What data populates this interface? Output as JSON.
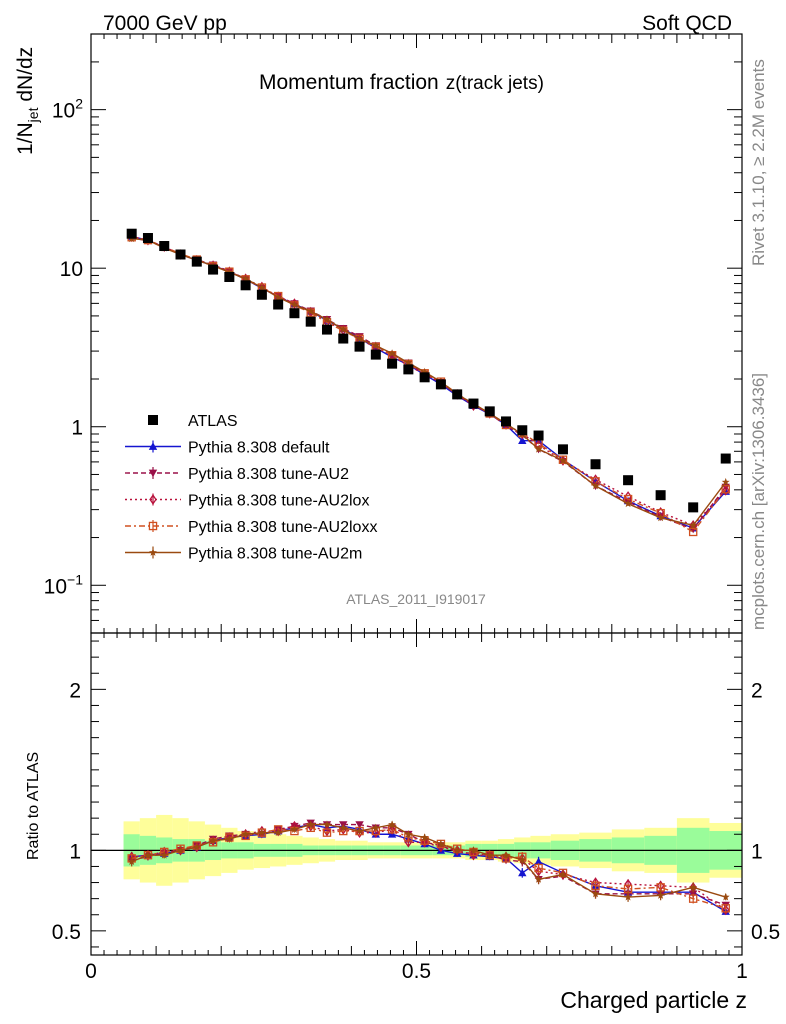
{
  "header": {
    "left": "7000 GeV pp",
    "right": "Soft QCD"
  },
  "side_labels": {
    "rivet": "Rivet 3.1.10, ≥ 2.2M events",
    "mcplots": "mcplots.cern.ch [arXiv:1306.3436]"
  },
  "chart_data": {
    "type": "scatter",
    "title": "Momentum fraction",
    "title_sub": "z(track jets)",
    "analysis_id": "ATLAS_2011_I919017",
    "xlabel": "Charged particle z",
    "ylabel_main": "1/N",
    "ylabel_main_sub": "jet",
    "ylabel_main_tail": " dN/dz",
    "ylabel_ratio": "Ratio to ATLAS",
    "xlim": [
      0,
      1
    ],
    "ylim_main": [
      0.05,
      300
    ],
    "ylim_ratio": [
      0.35,
      2.35
    ],
    "yscale_main": "log",
    "x_ticks": [
      "0",
      "0.5",
      "1"
    ],
    "y_ticks_main": [
      "10^-1",
      "1",
      "10",
      "10^2"
    ],
    "y_ticks_ratio": [
      "0.5",
      "1",
      "2"
    ],
    "legend_position": "lower-left",
    "x": [
      0.0625,
      0.0875,
      0.1125,
      0.1375,
      0.1625,
      0.1875,
      0.2125,
      0.2375,
      0.2625,
      0.2875,
      0.3125,
      0.3375,
      0.3625,
      0.3875,
      0.4125,
      0.4375,
      0.4625,
      0.4875,
      0.5125,
      0.5375,
      0.5625,
      0.5875,
      0.6125,
      0.6375,
      0.6625,
      0.6875,
      0.725,
      0.775,
      0.825,
      0.875,
      0.925,
      0.975
    ],
    "atlas_values": [
      16.5,
      15.5,
      13.8,
      12.2,
      11.0,
      9.8,
      8.8,
      7.8,
      6.8,
      5.9,
      5.2,
      4.6,
      4.1,
      3.6,
      3.2,
      2.85,
      2.5,
      2.3,
      2.05,
      1.85,
      1.6,
      1.4,
      1.25,
      1.08,
      0.95,
      0.88,
      0.72,
      0.58,
      0.46,
      0.37,
      0.31,
      0.63
    ],
    "band_inner": [
      0.1,
      0.09,
      0.08,
      0.07,
      0.07,
      0.06,
      0.05,
      0.05,
      0.04,
      0.04,
      0.04,
      0.03,
      0.03,
      0.03,
      0.03,
      0.03,
      0.03,
      0.03,
      0.03,
      0.03,
      0.03,
      0.04,
      0.04,
      0.04,
      0.05,
      0.05,
      0.06,
      0.07,
      0.08,
      0.09,
      0.14,
      0.12
    ],
    "band_outer": [
      0.18,
      0.2,
      0.22,
      0.2,
      0.18,
      0.16,
      0.14,
      0.12,
      0.11,
      0.1,
      0.09,
      0.08,
      0.07,
      0.06,
      0.06,
      0.05,
      0.05,
      0.05,
      0.05,
      0.05,
      0.05,
      0.06,
      0.06,
      0.07,
      0.08,
      0.09,
      0.1,
      0.11,
      0.13,
      0.14,
      0.2,
      0.17
    ],
    "series": [
      {
        "name": "ATLAS",
        "color": "#000000",
        "marker": "square-filled",
        "line": "none"
      },
      {
        "name": "Pythia 8.308 default",
        "color": "#1515d0",
        "marker": "triangle-up-filled",
        "line": "solid",
        "ratio": [
          0.96,
          0.97,
          0.98,
          1.0,
          1.02,
          1.06,
          1.08,
          1.09,
          1.1,
          1.12,
          1.14,
          1.16,
          1.14,
          1.15,
          1.13,
          1.1,
          1.1,
          1.07,
          1.04,
          1.0,
          0.98,
          0.97,
          0.96,
          0.95,
          0.86,
          0.93,
          0.86,
          0.78,
          0.74,
          0.74,
          0.74,
          0.62
        ],
        "ratio_err": [
          0.03,
          0.02,
          0.02,
          0.02,
          0.01,
          0.01,
          0.01,
          0.01,
          0.01,
          0.01,
          0.01,
          0.01,
          0.01,
          0.01,
          0.01,
          0.01,
          0.02,
          0.02,
          0.02,
          0.02,
          0.02,
          0.02,
          0.02,
          0.02,
          0.03,
          0.03,
          0.02,
          0.03,
          0.03,
          0.03,
          0.03,
          0.02
        ]
      },
      {
        "name": "Pythia 8.308 tune-AU2",
        "color": "#9a1048",
        "marker": "triangle-down-filled",
        "line": "dashed",
        "ratio": [
          0.94,
          0.96,
          0.98,
          1.0,
          1.03,
          1.07,
          1.09,
          1.1,
          1.1,
          1.13,
          1.15,
          1.17,
          1.16,
          1.16,
          1.16,
          1.14,
          1.14,
          1.1,
          1.05,
          1.03,
          0.99,
          0.98,
          0.97,
          0.94,
          0.93,
          0.82,
          0.84,
          0.73,
          0.73,
          0.73,
          0.73,
          0.66
        ],
        "ratio_err": [
          0.03,
          0.02,
          0.02,
          0.02,
          0.01,
          0.01,
          0.01,
          0.01,
          0.01,
          0.01,
          0.01,
          0.01,
          0.01,
          0.01,
          0.01,
          0.01,
          0.02,
          0.02,
          0.02,
          0.02,
          0.02,
          0.02,
          0.02,
          0.02,
          0.03,
          0.03,
          0.02,
          0.03,
          0.03,
          0.03,
          0.03,
          0.02
        ]
      },
      {
        "name": "Pythia 8.308 tune-AU2lox",
        "color": "#b8123c",
        "marker": "diamond-open",
        "line": "dotted",
        "ratio": [
          0.96,
          0.97,
          0.99,
          1.0,
          1.02,
          1.06,
          1.08,
          1.1,
          1.12,
          1.12,
          1.15,
          1.15,
          1.12,
          1.13,
          1.11,
          1.11,
          1.13,
          1.05,
          1.05,
          1.02,
          1.0,
          0.97,
          0.97,
          0.96,
          0.95,
          0.87,
          0.85,
          0.8,
          0.79,
          0.78,
          0.77,
          0.63
        ],
        "ratio_err": [
          0.03,
          0.02,
          0.02,
          0.02,
          0.01,
          0.01,
          0.01,
          0.01,
          0.01,
          0.01,
          0.01,
          0.01,
          0.01,
          0.01,
          0.01,
          0.01,
          0.02,
          0.02,
          0.02,
          0.02,
          0.02,
          0.02,
          0.02,
          0.02,
          0.03,
          0.03,
          0.02,
          0.03,
          0.03,
          0.03,
          0.03,
          0.02
        ]
      },
      {
        "name": "Pythia 8.308 tune-AU2loxx",
        "color": "#d05020",
        "marker": "square-open",
        "line": "dashdot",
        "ratio": [
          0.95,
          0.97,
          0.99,
          1.01,
          1.03,
          1.05,
          1.08,
          1.09,
          1.11,
          1.13,
          1.12,
          1.14,
          1.11,
          1.12,
          1.12,
          1.12,
          1.13,
          1.08,
          1.06,
          1.04,
          1.01,
          0.99,
          0.97,
          0.95,
          0.96,
          0.89,
          0.86,
          0.78,
          0.76,
          0.77,
          0.7,
          0.64
        ],
        "ratio_err": [
          0.03,
          0.02,
          0.02,
          0.02,
          0.01,
          0.01,
          0.01,
          0.01,
          0.01,
          0.01,
          0.01,
          0.01,
          0.01,
          0.01,
          0.01,
          0.01,
          0.02,
          0.02,
          0.02,
          0.02,
          0.02,
          0.02,
          0.02,
          0.02,
          0.03,
          0.03,
          0.02,
          0.03,
          0.03,
          0.03,
          0.03,
          0.02
        ]
      },
      {
        "name": "Pythia 8.308 tune-AU2m",
        "color": "#9a4a10",
        "marker": "star-filled",
        "line": "solid",
        "ratio": [
          0.93,
          0.97,
          0.97,
          1.0,
          1.02,
          1.06,
          1.07,
          1.1,
          1.11,
          1.11,
          1.13,
          1.16,
          1.16,
          1.14,
          1.12,
          1.14,
          1.16,
          1.1,
          1.08,
          1.04,
          1.0,
          1.0,
          0.97,
          0.97,
          0.94,
          0.82,
          0.85,
          0.73,
          0.71,
          0.72,
          0.77,
          0.71
        ],
        "ratio_err": [
          0.03,
          0.02,
          0.02,
          0.02,
          0.01,
          0.01,
          0.01,
          0.01,
          0.01,
          0.01,
          0.01,
          0.01,
          0.01,
          0.01,
          0.01,
          0.01,
          0.02,
          0.02,
          0.02,
          0.02,
          0.02,
          0.02,
          0.02,
          0.02,
          0.03,
          0.03,
          0.02,
          0.03,
          0.03,
          0.03,
          0.03,
          0.02
        ]
      }
    ]
  }
}
